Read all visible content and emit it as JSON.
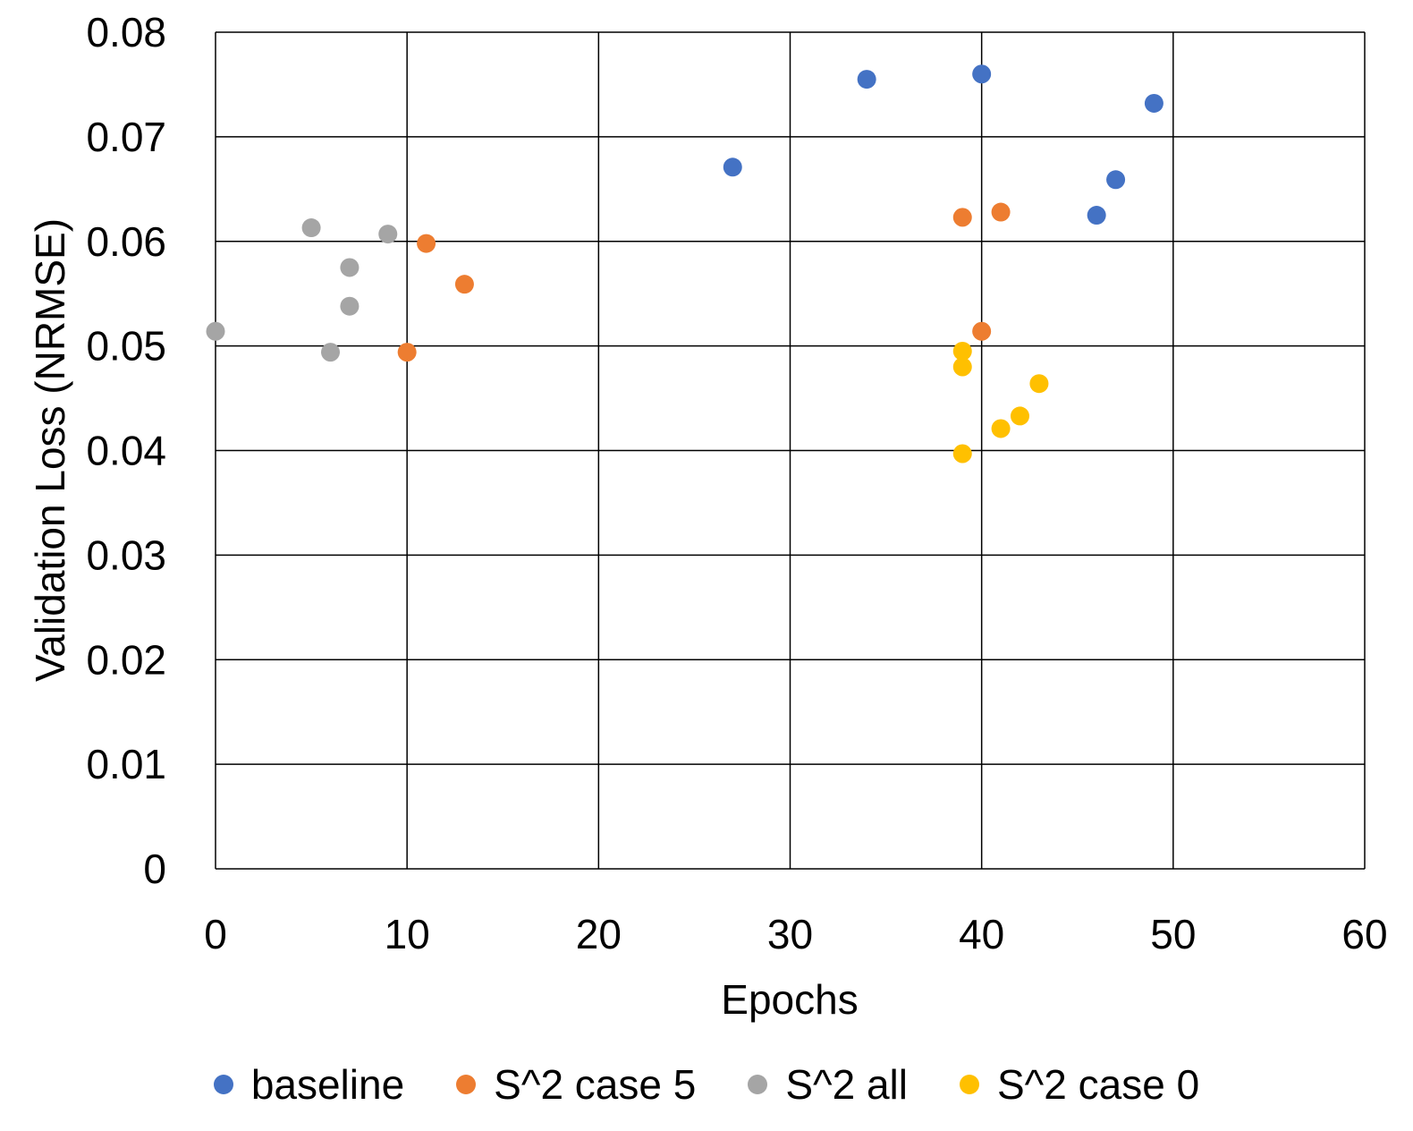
{
  "chart_data": {
    "type": "scatter",
    "title": "",
    "xlabel": "Epochs",
    "ylabel": "Validation Loss (NRMSE)",
    "xlim": [
      0,
      60
    ],
    "ylim": [
      0,
      0.08
    ],
    "x_ticks": [
      "0",
      "10",
      "20",
      "30",
      "40",
      "50",
      "60"
    ],
    "y_ticks": [
      "0",
      "0.01",
      "0.02",
      "0.03",
      "0.04",
      "0.05",
      "0.06",
      "0.07",
      "0.08"
    ],
    "grid": true,
    "legend_position": "bottom",
    "series": [
      {
        "name": "baseline",
        "color": "#4472C4",
        "points": [
          [
            27,
            0.0671
          ],
          [
            34,
            0.0755
          ],
          [
            40,
            0.076
          ],
          [
            46,
            0.0625
          ],
          [
            47,
            0.0659
          ],
          [
            49,
            0.0732
          ]
        ]
      },
      {
        "name": "S^2 case 5",
        "color": "#ED7D31",
        "points": [
          [
            10,
            0.0494
          ],
          [
            11,
            0.0598
          ],
          [
            13,
            0.0559
          ],
          [
            39,
            0.0623
          ],
          [
            40,
            0.0514
          ],
          [
            41,
            0.0628
          ]
        ]
      },
      {
        "name": "S^2 all",
        "color": "#A5A5A5",
        "points": [
          [
            0,
            0.0514
          ],
          [
            5,
            0.0613
          ],
          [
            6,
            0.0494
          ],
          [
            7,
            0.0575
          ],
          [
            7,
            0.0538
          ],
          [
            9,
            0.0607
          ]
        ]
      },
      {
        "name": "S^2 case 0",
        "color": "#FFC000",
        "points": [
          [
            39,
            0.0495
          ],
          [
            39,
            0.048
          ],
          [
            39,
            0.0397
          ],
          [
            41,
            0.0421
          ],
          [
            42,
            0.0433
          ],
          [
            43,
            0.0464
          ]
        ]
      }
    ]
  }
}
